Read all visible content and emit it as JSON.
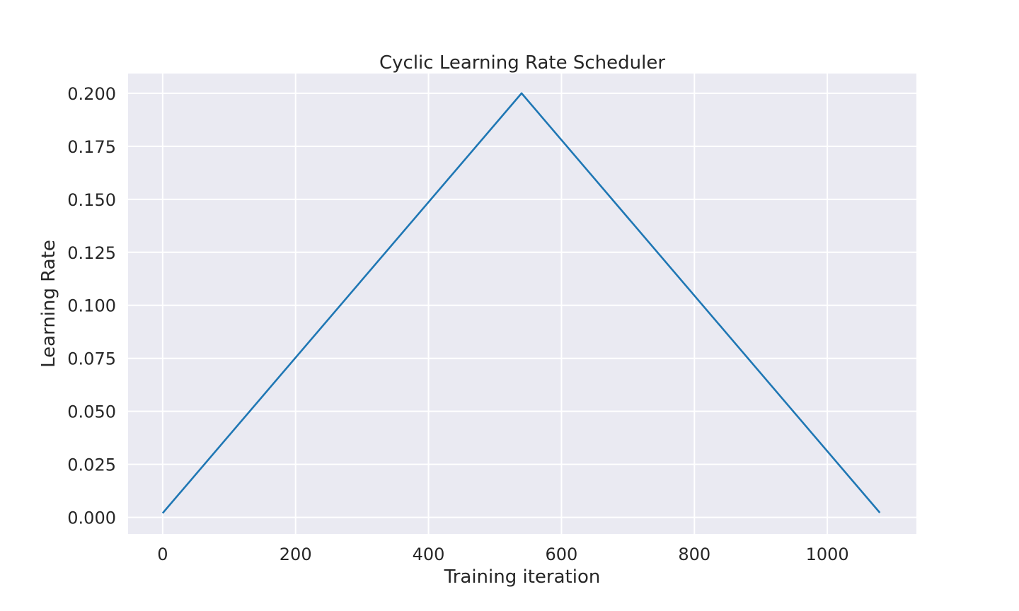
{
  "chart_data": {
    "type": "line",
    "title": "Cyclic Learning Rate Scheduler",
    "xlabel": "Training iteration",
    "ylabel": "Learning Rate",
    "xlim": [
      -52,
      1134
    ],
    "ylim": [
      -0.0078,
      0.2093
    ],
    "x_ticks": [
      0,
      200,
      400,
      600,
      800,
      1000
    ],
    "x_tick_labels": [
      "0",
      "200",
      "400",
      "600",
      "800",
      "1000"
    ],
    "y_ticks": [
      0,
      0.025,
      0.05,
      0.075,
      0.1,
      0.125,
      0.15,
      0.175,
      0.2
    ],
    "y_tick_labels": [
      "0.000",
      "0.025",
      "0.050",
      "0.075",
      "0.100",
      "0.125",
      "0.150",
      "0.175",
      "0.200"
    ],
    "grid": true,
    "background": "#eaeaf2",
    "grid_color": "#ffffff",
    "series": [
      {
        "color": "#1f77b4",
        "x": [
          0,
          540,
          1079
        ],
        "y": [
          0.002,
          0.2,
          0.0022
        ]
      }
    ]
  }
}
